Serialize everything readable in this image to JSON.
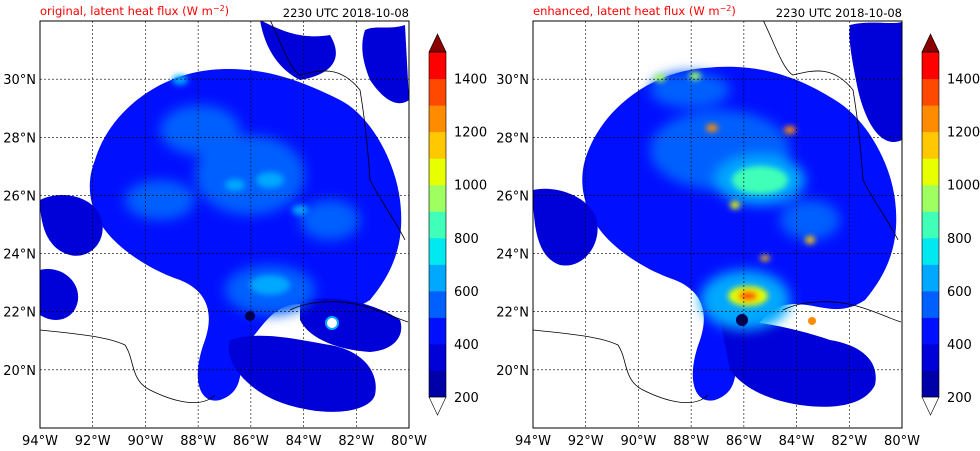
{
  "panels": [
    {
      "title_left": "original, latent heat flux (W m",
      "title_left_sup": "−2",
      "title_left_end": ")",
      "title_right": "2230 UTC 2018-10-08",
      "variant": "original"
    },
    {
      "title_left": "enhanced, latent heat flux (W m",
      "title_left_sup": "−2",
      "title_left_end": ")",
      "title_right": "2230 UTC 2018-10-08",
      "variant": "enhanced"
    }
  ],
  "chart_data": {
    "type": "heatmap",
    "xlim": [
      -94,
      -80
    ],
    "ylim": [
      18,
      32
    ],
    "x_ticks": [
      "94°W",
      "92°W",
      "90°W",
      "88°W",
      "86°W",
      "84°W",
      "82°W",
      "80°W"
    ],
    "y_ticks": [
      "20°N",
      "22°N",
      "24°N",
      "26°N",
      "28°N",
      "30°N"
    ],
    "x_tick_values": [
      -94,
      -92,
      -90,
      -88,
      -86,
      -84,
      -82,
      -80
    ],
    "y_tick_values": [
      20,
      22,
      24,
      26,
      28,
      30
    ],
    "grid": true,
    "colorbar": {
      "min": 200,
      "max": 1500,
      "levels": [
        200,
        300,
        400,
        500,
        600,
        700,
        800,
        900,
        1000,
        1100,
        1200,
        1300,
        1400,
        1500
      ],
      "tick_labels": [
        "200",
        "400",
        "600",
        "800",
        "1000",
        "1200",
        "1400"
      ],
      "tick_values": [
        200,
        400,
        600,
        800,
        1000,
        1200,
        1400
      ],
      "colors": [
        "#0000a8",
        "#0000d8",
        "#0010ff",
        "#0060ff",
        "#00a8ff",
        "#00e8f0",
        "#40ffb8",
        "#a0ff60",
        "#e8ff00",
        "#ffc800",
        "#ff8c00",
        "#ff4800",
        "#ff0000",
        "#c80000"
      ],
      "extend_max_color": "#8b0000"
    }
  }
}
